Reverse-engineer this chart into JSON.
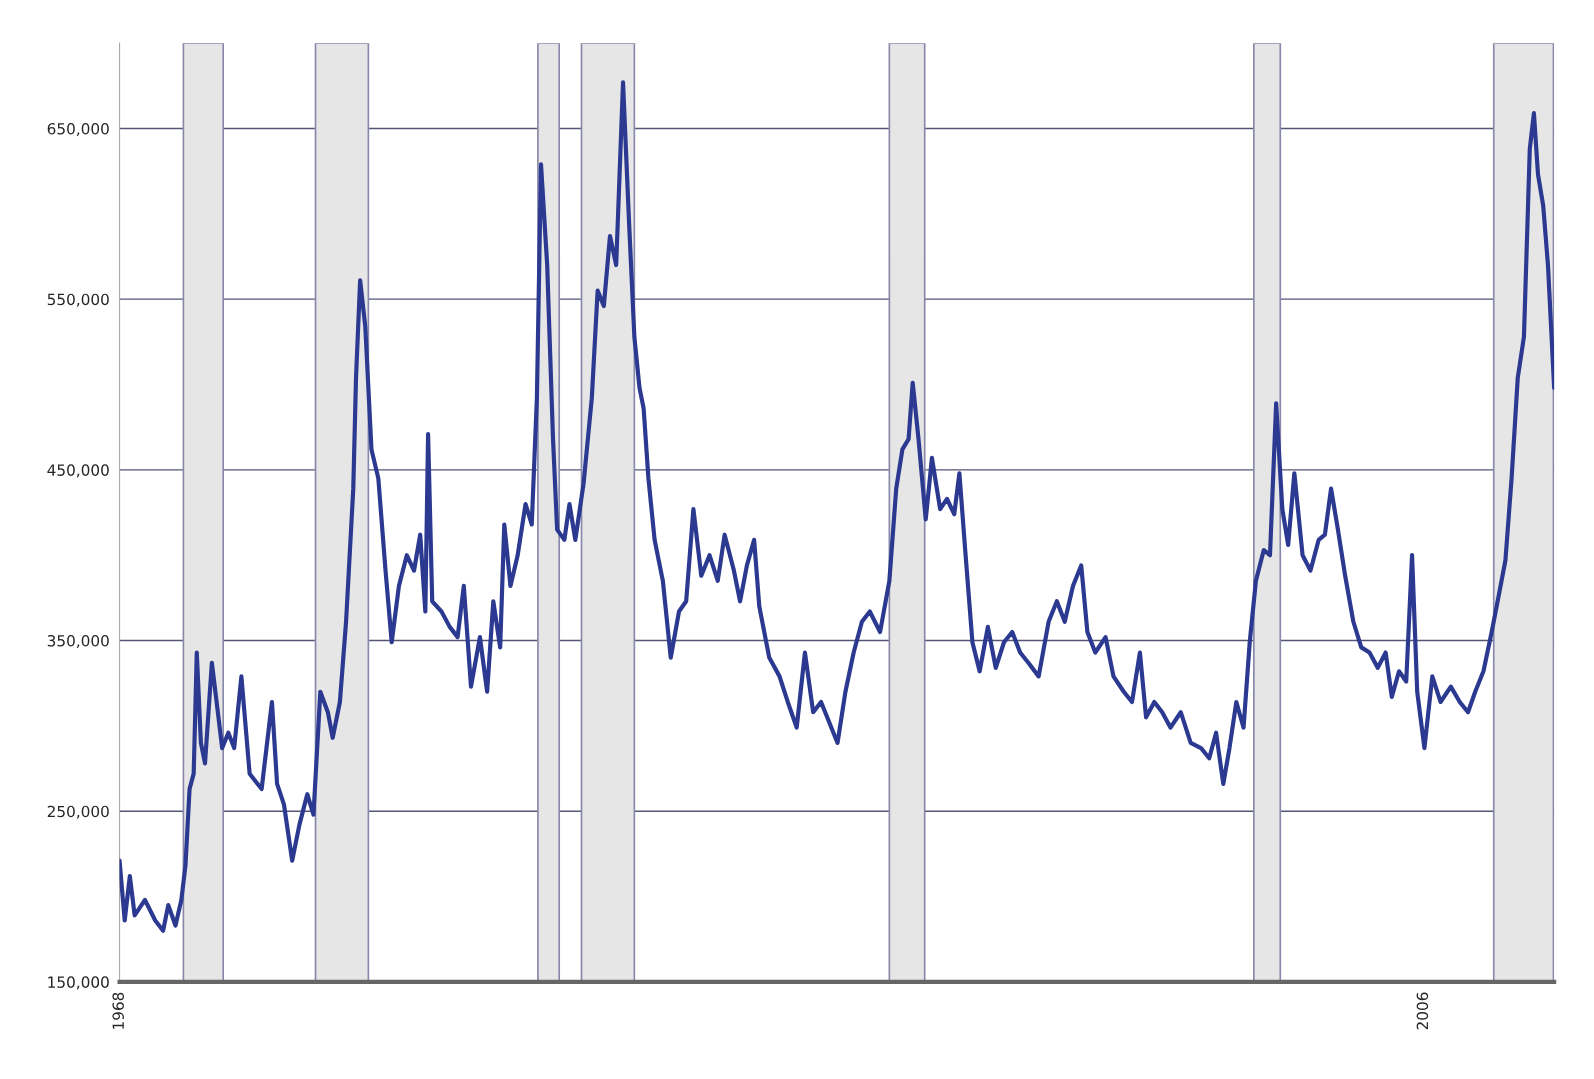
{
  "chart_data": {
    "type": "line",
    "x": [
      1968.0,
      1968.15,
      1968.3,
      1968.44,
      1968.74,
      1969.04,
      1969.27,
      1969.42,
      1969.63,
      1969.8,
      1969.92,
      1970.04,
      1970.16,
      1970.25,
      1970.37,
      1970.49,
      1970.69,
      1970.99,
      1971.17,
      1971.34,
      1971.55,
      1971.79,
      1972.14,
      1972.44,
      1972.59,
      1972.79,
      1973.03,
      1973.24,
      1973.47,
      1973.65,
      1973.85,
      1974.07,
      1974.21,
      1974.42,
      1974.6,
      1974.81,
      1974.89,
      1975.01,
      1975.16,
      1975.34,
      1975.54,
      1975.75,
      1975.93,
      1976.14,
      1976.37,
      1976.58,
      1976.76,
      1976.91,
      1976.99,
      1977.11,
      1977.38,
      1977.62,
      1977.85,
      1978.03,
      1978.24,
      1978.5,
      1978.71,
      1978.89,
      1979.09,
      1979.21,
      1979.39,
      1979.6,
      1979.83,
      1980.01,
      1980.16,
      1980.28,
      1980.46,
      1980.63,
      1980.75,
      1980.96,
      1981.11,
      1981.28,
      1981.52,
      1981.76,
      1981.93,
      1982.11,
      1982.29,
      1982.47,
      1982.67,
      1982.85,
      1983.0,
      1983.15,
      1983.27,
      1983.41,
      1983.59,
      1983.83,
      1984.06,
      1984.3,
      1984.51,
      1984.72,
      1984.95,
      1985.19,
      1985.43,
      1985.63,
      1985.9,
      1986.08,
      1986.28,
      1986.49,
      1986.64,
      1986.93,
      1987.23,
      1987.47,
      1987.73,
      1987.97,
      1988.21,
      1988.44,
      1988.68,
      1988.92,
      1989.15,
      1989.39,
      1989.63,
      1989.86,
      1990.16,
      1990.43,
      1990.63,
      1990.81,
      1990.99,
      1991.11,
      1991.28,
      1991.49,
      1991.67,
      1991.91,
      1992.11,
      1992.32,
      1992.47,
      1992.64,
      1992.85,
      1993.06,
      1993.3,
      1993.53,
      1993.77,
      1994.01,
      1994.24,
      1994.48,
      1994.78,
      1995.07,
      1995.31,
      1995.54,
      1995.78,
      1996.02,
      1996.2,
      1996.43,
      1996.73,
      1996.96,
      1997.26,
      1997.5,
      1997.73,
      1997.91,
      1998.15,
      1998.38,
      1998.62,
      1998.92,
      1999.21,
      1999.51,
      1999.75,
      1999.95,
      2000.16,
      2000.34,
      2000.54,
      2000.75,
      2000.93,
      2001.11,
      2001.34,
      2001.52,
      2001.7,
      2001.88,
      2002.05,
      2002.23,
      2002.47,
      2002.7,
      2002.94,
      2003.12,
      2003.3,
      2003.5,
      2003.71,
      2003.95,
      2004.18,
      2004.42,
      2004.66,
      2004.89,
      2005.07,
      2005.28,
      2005.49,
      2005.66,
      2005.81,
      2006.02,
      2006.25,
      2006.49,
      2006.79,
      2007.05,
      2007.29,
      2007.5,
      2007.74,
      2007.98,
      2008.21,
      2008.38,
      2008.56,
      2008.74,
      2008.92,
      2009.09,
      2009.21,
      2009.33,
      2009.48,
      2009.62,
      2009.71,
      2009.8
    ],
    "series": [
      {
        "color": "#2b3990",
        "values": [
          221000,
          186000,
          212000,
          189000,
          198000,
          186000,
          180000,
          195000,
          183000,
          198000,
          218000,
          263000,
          272000,
          343000,
          290000,
          278000,
          337000,
          287000,
          296000,
          287000,
          329000,
          272000,
          263000,
          314000,
          266000,
          254000,
          221000,
          242000,
          260000,
          248000,
          320000,
          308000,
          293000,
          314000,
          361000,
          439000,
          504000,
          561000,
          534000,
          462000,
          445000,
          391000,
          349000,
          382000,
          400000,
          391000,
          412000,
          367000,
          471000,
          373000,
          367000,
          358000,
          352000,
          382000,
          323000,
          352000,
          320000,
          373000,
          346000,
          418000,
          382000,
          400000,
          430000,
          418000,
          492000,
          629000,
          570000,
          468000,
          415000,
          409000,
          430000,
          409000,
          442000,
          492000,
          555000,
          546000,
          587000,
          570000,
          677000,
          593000,
          528000,
          498000,
          486000,
          445000,
          409000,
          385000,
          340000,
          367000,
          373000,
          427000,
          388000,
          400000,
          385000,
          412000,
          391000,
          373000,
          394000,
          409000,
          370000,
          340000,
          329000,
          314000,
          299000,
          343000,
          308000,
          314000,
          302000,
          290000,
          320000,
          343000,
          361000,
          367000,
          355000,
          385000,
          439000,
          462000,
          468000,
          501000,
          468000,
          421000,
          457000,
          427000,
          433000,
          424000,
          448000,
          403000,
          349000,
          332000,
          358000,
          334000,
          349000,
          355000,
          343000,
          337000,
          329000,
          361000,
          373000,
          361000,
          382000,
          394000,
          355000,
          343000,
          352000,
          329000,
          320000,
          314000,
          343000,
          305000,
          314000,
          308000,
          299000,
          308000,
          290000,
          287000,
          281000,
          296000,
          266000,
          287000,
          314000,
          299000,
          349000,
          385000,
          403000,
          400000,
          489000,
          427000,
          406000,
          448000,
          400000,
          391000,
          409000,
          412000,
          439000,
          415000,
          388000,
          361000,
          346000,
          343000,
          334000,
          343000,
          317000,
          332000,
          326000,
          400000,
          320000,
          287000,
          329000,
          314000,
          323000,
          314000,
          308000,
          320000,
          332000,
          355000,
          379000,
          397000,
          445000,
          504000,
          528000,
          638000,
          659000,
          623000,
          605000,
          570000,
          534000,
          498000
        ]
      }
    ],
    "xlim": [
      1968,
      2009.8
    ],
    "xticks": [
      1968,
      2006
    ],
    "ylim": [
      150000,
      700000
    ],
    "yticks": [
      {
        "value": 150000,
        "label": "150,000"
      },
      {
        "value": 250000,
        "label": "250,000"
      },
      {
        "value": 350000,
        "label": "350,000"
      },
      {
        "value": 450000,
        "label": "450,000"
      },
      {
        "value": 550000,
        "label": "550,000"
      },
      {
        "value": 650000,
        "label": "650,000"
      }
    ],
    "bands": [
      {
        "axis": "x",
        "from": 1969.86,
        "to": 1971.02,
        "color": "#e6e6e6"
      },
      {
        "axis": "x",
        "from": 1973.71,
        "to": 1975.25,
        "color": "#e6e6e6"
      },
      {
        "axis": "x",
        "from": 1980.19,
        "to": 1980.81,
        "color": "#e6e6e6"
      },
      {
        "axis": "x",
        "from": 1981.46,
        "to": 1983.0,
        "color": "#e6e6e6"
      },
      {
        "axis": "x",
        "from": 1990.43,
        "to": 1991.46,
        "color": "#e6e6e6"
      },
      {
        "axis": "x",
        "from": 2001.05,
        "to": 2001.82,
        "color": "#e6e6e6"
      },
      {
        "axis": "x",
        "from": 2008.04,
        "to": 2009.78,
        "color": "#e6e6e6"
      }
    ],
    "grid": "y",
    "legend": false,
    "marker": "none",
    "line_style": "solid"
  }
}
